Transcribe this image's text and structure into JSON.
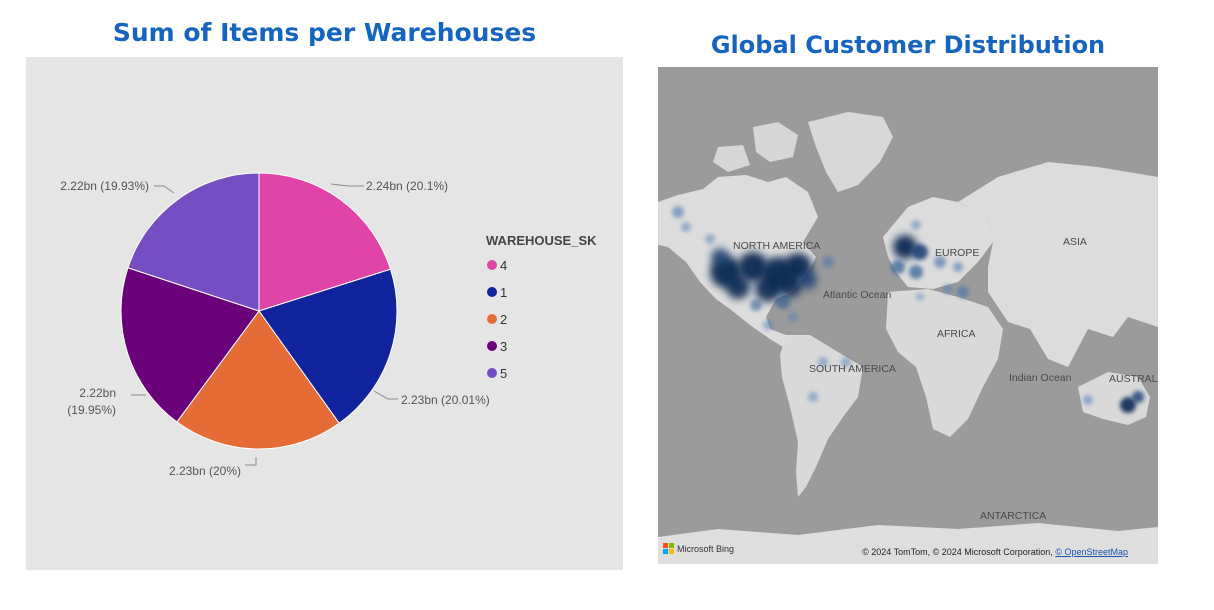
{
  "left_chart": {
    "title": "Sum of Items per Warehouses",
    "legend_title": "WAREHOUSE_SK"
  },
  "right_chart": {
    "title": "Global Customer Distribution",
    "map_labels": {
      "north_america": "NORTH AMERICA",
      "europe": "EUROPE",
      "asia": "ASIA",
      "atlantic_ocean": "Atlantic Ocean",
      "africa": "AFRICA",
      "south_america": "SOUTH AMERICA",
      "indian_ocean": "Indian Ocean",
      "australia": "AUSTRAL",
      "antarctica": "ANTARCTICA"
    },
    "attribution": "© 2024 TomTom, © 2024 Microsoft Corporation,",
    "attribution_link": "© OpenStreetMap",
    "logo_text": "Microsoft Bing"
  },
  "chart_data": [
    {
      "type": "pie",
      "title": "Sum of Items per Warehouses",
      "legend_title": "WAREHOUSE_SK",
      "legend_position": "right",
      "slices": [
        {
          "name": "4",
          "value": 2.24,
          "label": "2.24bn (20.1%)",
          "color": "#e044a7"
        },
        {
          "name": "1",
          "value": 2.23,
          "label": "2.23bn (20.01%)",
          "color": "#12239e"
        },
        {
          "name": "2",
          "value": 2.23,
          "label": "2.23bn (20%)",
          "color": "#e66c37"
        },
        {
          "name": "3",
          "value": 2.22,
          "label": "2.22bn (19.95%)",
          "color": "#6b007b"
        },
        {
          "name": "5",
          "value": 2.22,
          "label": "2.22bn (19.93%)",
          "color": "#744ec2"
        }
      ],
      "units": "bn"
    },
    {
      "type": "heatmap",
      "title": "Global Customer Distribution",
      "regions": [
        "North America",
        "Europe",
        "Australia",
        "South America",
        "Africa",
        "Asia"
      ]
    }
  ]
}
